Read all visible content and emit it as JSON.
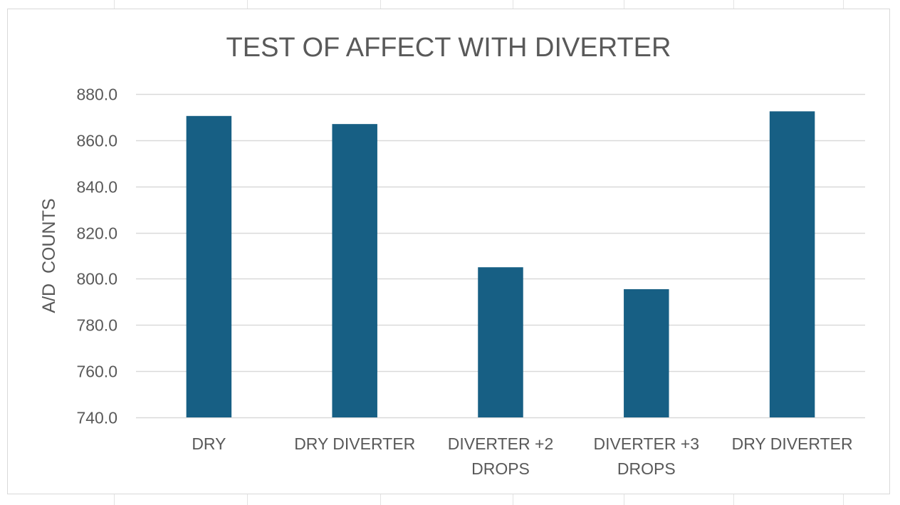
{
  "chart_data": {
    "type": "bar",
    "title": "TEST OF AFFECT WITH DIVERTER",
    "xlabel": "",
    "ylabel": "A/D  COUNTS",
    "ylim": [
      740,
      880
    ],
    "y_step": 20,
    "y_tick_decimals": 1,
    "grid": true,
    "legend": "none",
    "categories": [
      [
        "DRY"
      ],
      [
        "DRY DIVERTER"
      ],
      [
        "DIVERTER +2",
        "DROPS"
      ],
      [
        "DIVERTER +3",
        "DROPS"
      ],
      [
        "DRY DIVERTER"
      ]
    ],
    "values": [
      870.5,
      867.0,
      805.0,
      795.5,
      872.5
    ],
    "colors": {
      "bar": "#175f84",
      "grid": "#d9d9d9",
      "text": "#595959",
      "title": "#595959"
    }
  }
}
